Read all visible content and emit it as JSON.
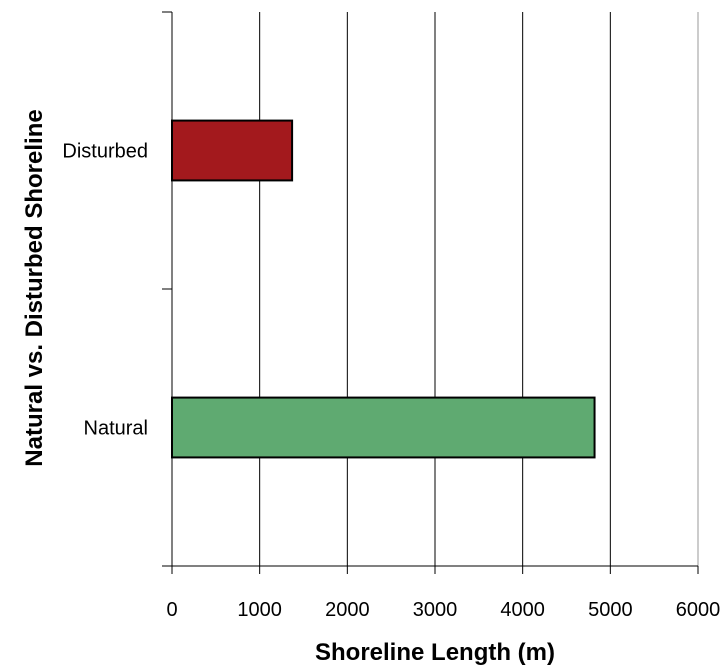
{
  "chart_data": {
    "type": "bar",
    "orientation": "horizontal",
    "categories": [
      "Disturbed",
      "Natural"
    ],
    "values": [
      1370,
      4820
    ],
    "colors": [
      "#a3191d",
      "#5faa71"
    ],
    "title": "",
    "xlabel": "Shoreline Length (m)",
    "ylabel": "Natural vs. Disturbed Shoreline",
    "xlim": [
      0,
      6000
    ],
    "xticks": [
      0,
      1000,
      2000,
      3000,
      4000,
      5000,
      6000
    ],
    "grid": "vertical",
    "legend": "none"
  }
}
